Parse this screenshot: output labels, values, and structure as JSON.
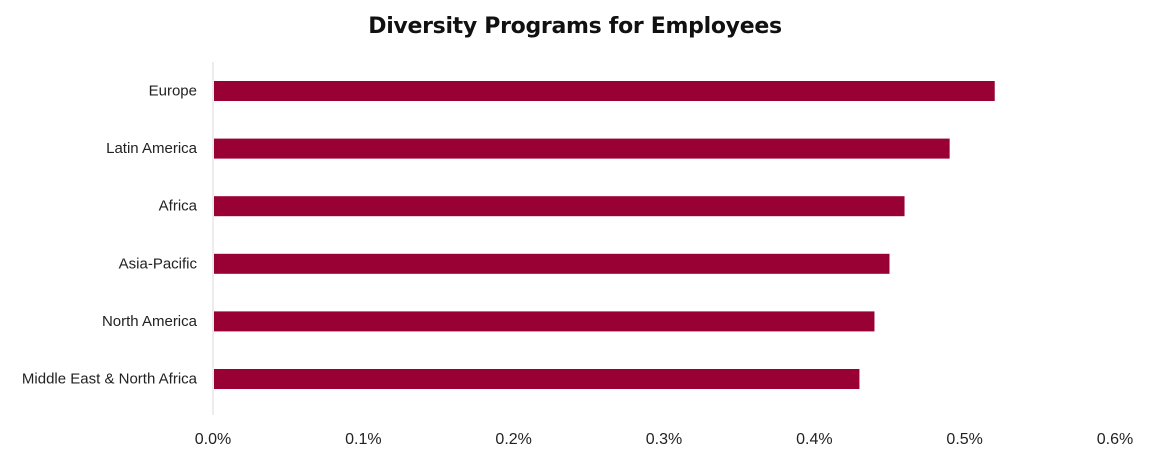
{
  "chart_data": {
    "type": "bar",
    "orientation": "horizontal",
    "title": "Diversity Programs for Employees",
    "xlabel": "",
    "ylabel": "",
    "categories": [
      "Europe",
      "Latin America",
      "Africa",
      "Asia-Pacific",
      "North America",
      "Middle East & North Africa"
    ],
    "values": [
      0.52,
      0.49,
      0.46,
      0.45,
      0.44,
      0.43
    ],
    "xlim": [
      0,
      0.6
    ],
    "x_ticks": [
      0,
      0.1,
      0.2,
      0.3,
      0.4,
      0.5,
      0.6
    ],
    "x_tick_labels": [
      "0.0%",
      "0.1%",
      "0.2%",
      "0.3%",
      "0.4%",
      "0.5%",
      "0.6%"
    ],
    "grid": false,
    "legend": "none",
    "bar_color": "#990033",
    "axis_color": "#e6e6e6"
  }
}
